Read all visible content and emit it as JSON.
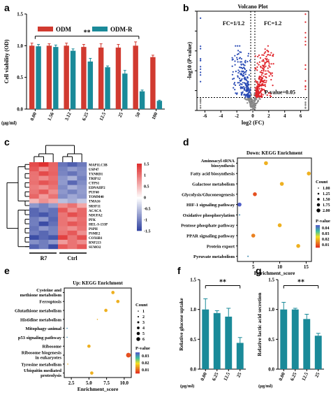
{
  "panels": {
    "a": {
      "letter": "a",
      "chart_data": {
        "type": "bar",
        "ylabel": "Cell viability (OD)",
        "xunit": "(μg/ml)",
        "ylim": [
          0,
          1.5
        ],
        "yticks": [
          "0.0",
          "0.5",
          "1.0",
          "1.5"
        ],
        "categories": [
          "0.00",
          "1.56",
          "3.12",
          "6.25",
          "12.5",
          "25",
          "50",
          "100"
        ],
        "series": [
          {
            "name": "ODM",
            "color": "#d13a30",
            "values": [
              1.0,
              1.0,
              1.0,
              0.98,
              0.97,
              0.97,
              1.0,
              0.82
            ],
            "errors": [
              0.04,
              0.03,
              0.04,
              0.04,
              0.06,
              0.05,
              0.06,
              0.03
            ]
          },
          {
            "name": "ODM-R",
            "color": "#1a8a99",
            "values": [
              0.99,
              0.98,
              0.92,
              0.75,
              0.66,
              0.56,
              0.28,
              0.13
            ],
            "errors": [
              0.03,
              0.03,
              0.03,
              0.05,
              0.02,
              0.05,
              0.02,
              0.01
            ]
          }
        ],
        "significance": "**",
        "legend": "top"
      }
    },
    "b": {
      "letter": "b",
      "chart_data": {
        "type": "scatter",
        "title": "Volcano Plot",
        "xlabel": "log2 (FC)",
        "ylabel": "-log10 (P-value)",
        "xlim": [
          -7,
          7
        ],
        "xticks": [
          "-6",
          "-4",
          "-2",
          "0",
          "2",
          "4",
          "6"
        ],
        "ylim": [
          0,
          10
        ],
        "yticks": [
          "0",
          "2",
          "4",
          "6",
          "8",
          "10"
        ],
        "annotations": [
          "FC=1/1.2",
          "FC=1.2",
          "P-value=0.05"
        ],
        "colors": {
          "down": "#2a4bb5",
          "up": "#e0252c",
          "ns": "#888888"
        }
      }
    },
    "c": {
      "letter": "c",
      "chart_data": {
        "type": "heatmap",
        "columns": [
          "R7",
          "Ctrl"
        ],
        "genes": [
          "MAP1LC3B",
          "USP47",
          "TXNRD1",
          "TRIP12",
          "CTPS1",
          "EDNAIIP2",
          "PUF60",
          "TOMM40",
          "TMA16",
          "SRSF11",
          "ACACA",
          "NDUFA2",
          "PFK",
          "HEL-S-133P",
          "PSPH",
          "PSME2",
          "COX6B1",
          "RNF213",
          "SUMO2"
        ],
        "colorbar": [
          "1.5",
          "1",
          "0.5",
          "0",
          "-0.5",
          "-1",
          "-1.5"
        ],
        "colors": {
          "high": "#e03030",
          "mid": "#ffffff",
          "low": "#2a3d9e"
        }
      }
    },
    "d": {
      "letter": "d",
      "chart_data": {
        "type": "scatter",
        "title": "Down: KEGG Enrichment",
        "xlabel": "Enrichment_score",
        "xticks": [
          "5",
          "10",
          "15"
        ],
        "xlim": [
          2,
          16
        ],
        "categories": [
          "Aminoacyl-tRNA biosynthesis",
          "Fatty acid biosynthesis",
          "Galactose metabolism",
          "Glycolysis/Gluconeogenesis",
          "HIF-1 signaling pathway",
          "Oxidative phosphorylation",
          "Pentose phosphate pathway",
          "PPAR signaling pathway",
          "Protein export",
          "Pyruvate metabolism"
        ],
        "x": [
          7.4,
          15.5,
          10.4,
          5.3,
          2.4,
          2.4,
          10.0,
          5.0,
          13.5,
          4.0
        ],
        "count": [
          1.75,
          1.75,
          1.75,
          1.75,
          1.75,
          1.0,
          1.75,
          1.75,
          1.75,
          1.0
        ],
        "pvalue": [
          0.02,
          0.02,
          0.02,
          0.01,
          0.045,
          0.04,
          0.02,
          0.015,
          0.02,
          0.04
        ],
        "legend_count_title": "Count",
        "legend_counts": [
          "1.00",
          "1.25",
          "1.50",
          "1.75",
          "2.00"
        ],
        "legend_p_title": "P-value",
        "legend_p": [
          "0.04",
          "0.03",
          "0.02",
          "0.01"
        ]
      }
    },
    "e": {
      "letter": "e",
      "chart_data": {
        "type": "scatter",
        "title": "Up: KEGG Enrichment",
        "xlabel": "Enrichment_score",
        "xticks": [
          "2.5",
          "5.0",
          "7.5",
          "10.0"
        ],
        "xlim": [
          1.5,
          11
        ],
        "categories": [
          "Cysteine and methione metabolism",
          "Ferroptosis",
          "Glutathione metabolism",
          "Histidine metabolism",
          "Mitophagy-animal",
          "p53 signaling pathway",
          "Ribosome",
          "Ribosome biogenesis in eukaryotes",
          "Tyrosine metabolism",
          "Ubiquitin mediated proteolysis"
        ],
        "x": [
          8.4,
          9.1,
          7.4,
          6.2,
          1.9,
          1.9,
          5.0,
          10.6,
          2.0,
          5.4
        ],
        "count": [
          4,
          4,
          4,
          1,
          1,
          1,
          4,
          6,
          1,
          4
        ],
        "pvalue": [
          0.02,
          0.02,
          0.02,
          0.02,
          0.04,
          0.04,
          0.02,
          0.01,
          0.02,
          0.02
        ],
        "legend_count_title": "Count",
        "legend_counts": [
          "1",
          "2",
          "3",
          "4",
          "5",
          "6"
        ],
        "legend_p_title": "P-value",
        "legend_p": [
          "0.03",
          "0.02",
          "0.01"
        ]
      }
    },
    "f": {
      "letter": "f",
      "chart_data": {
        "type": "bar",
        "ylabel": "Relative glucose uptake",
        "xunit": "(μg/ml)",
        "categories": [
          "0.00",
          "6.25",
          "12.5",
          "25"
        ],
        "values": [
          1.0,
          0.94,
          0.88,
          0.44
        ],
        "errors": [
          0.18,
          0.04,
          0.14,
          0.09
        ],
        "ylim": [
          0,
          1.5
        ],
        "yticks": [
          "0.0",
          "0.5",
          "1.0",
          "1.5"
        ],
        "significance": "**",
        "color": "#1a8a99"
      }
    },
    "g": {
      "letter": "g",
      "chart_data": {
        "type": "bar",
        "ylabel": "Relative lactic acid secretion",
        "xunit": "(μg/ml)",
        "categories": [
          "0.00",
          "6.25",
          "12.5",
          "25"
        ],
        "values": [
          1.0,
          1.0,
          0.84,
          0.56
        ],
        "errors": [
          0.12,
          0.02,
          0.08,
          0.04
        ],
        "ylim": [
          0,
          1.5
        ],
        "yticks": [
          "0.0",
          "0.5",
          "1.0",
          "1.5"
        ],
        "significance": "**",
        "color": "#1a8a99"
      }
    }
  }
}
